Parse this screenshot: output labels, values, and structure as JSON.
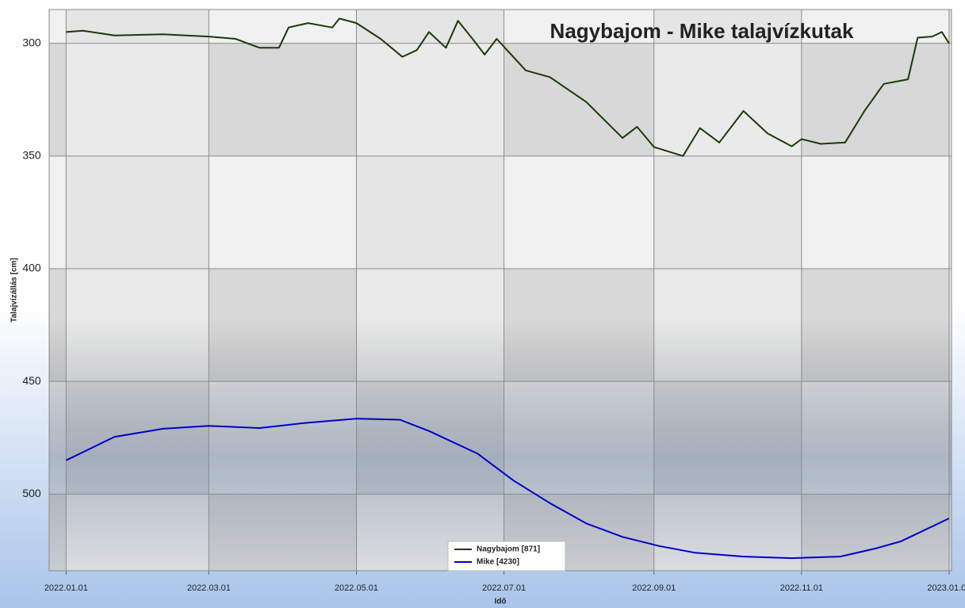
{
  "chart_data": {
    "type": "line",
    "title": "Nagybajom - Mike talajvízkutak",
    "y_label": "Talajvízállás [cm]",
    "x_label": "Idő",
    "ylim": [
      285,
      534
    ],
    "y_inverted": true,
    "yticks": [
      300,
      350,
      400,
      450,
      500
    ],
    "xlim": [
      "2021-12-25",
      "2023-01-02"
    ],
    "xticks": [
      {
        "value": "2022-01-01",
        "label": "2022.01.01"
      },
      {
        "value": "2022-03-01",
        "label": "2022.03.01"
      },
      {
        "value": "2022-05-01",
        "label": "2022.05.01"
      },
      {
        "value": "2022-07-01",
        "label": "2022.07.01"
      },
      {
        "value": "2022-09-01",
        "label": "2022.09.01"
      },
      {
        "value": "2022-11-01",
        "label": "2022.11.01"
      },
      {
        "value": "2023-01-01",
        "label": "2023.01.01"
      }
    ],
    "grid": true,
    "legend": "bottom",
    "series": [
      {
        "name": "Nagybajom [871]",
        "color": "#1a3a0a",
        "x": [
          "2022-01-01",
          "2022-01-08",
          "2022-01-21",
          "2022-02-10",
          "2022-03-01",
          "2022-03-12",
          "2022-03-22",
          "2022-03-30",
          "2022-04-03",
          "2022-04-11",
          "2022-04-21",
          "2022-04-24",
          "2022-05-01",
          "2022-05-11",
          "2022-05-20",
          "2022-05-26",
          "2022-05-31",
          "2022-06-07",
          "2022-06-12",
          "2022-06-18",
          "2022-06-23",
          "2022-06-28",
          "2022-07-10",
          "2022-07-20",
          "2022-08-04",
          "2022-08-19",
          "2022-08-25",
          "2022-09-01",
          "2022-09-13",
          "2022-09-20",
          "2022-09-28",
          "2022-10-08",
          "2022-10-18",
          "2022-10-28",
          "2022-11-01",
          "2022-11-09",
          "2022-11-19",
          "2022-11-27",
          "2022-12-05",
          "2022-12-15",
          "2022-12-19",
          "2022-12-25",
          "2022-12-29",
          "2023-01-01"
        ],
        "values": [
          295,
          294.4,
          296.5,
          296,
          297,
          298,
          302,
          302,
          293,
          291,
          293,
          289,
          291,
          298,
          306,
          303,
          295,
          302,
          290,
          298,
          305,
          298,
          312,
          315,
          326,
          342,
          337,
          346,
          350,
          337.6,
          344,
          330,
          340,
          345.7,
          342.5,
          344.6,
          344,
          330,
          318,
          316,
          297.5,
          297,
          295,
          300
        ]
      },
      {
        "name": "Mike [4230]",
        "color": "#0000c8",
        "x": [
          "2022-01-01",
          "2022-01-21",
          "2022-02-10",
          "2022-03-01",
          "2022-03-22",
          "2022-04-11",
          "2022-05-01",
          "2022-05-19",
          "2022-05-31",
          "2022-06-20",
          "2022-07-05",
          "2022-07-20",
          "2022-08-04",
          "2022-08-19",
          "2022-09-03",
          "2022-09-18",
          "2022-10-08",
          "2022-10-28",
          "2022-11-17",
          "2022-12-02",
          "2022-12-12",
          "2023-01-01"
        ],
        "values": [
          485,
          474.6,
          471,
          469.7,
          470.7,
          468.3,
          466.5,
          467,
          472,
          482,
          494,
          504,
          513,
          519,
          523,
          526,
          527.7,
          528.4,
          527.7,
          524,
          521,
          510.8
        ]
      }
    ]
  }
}
